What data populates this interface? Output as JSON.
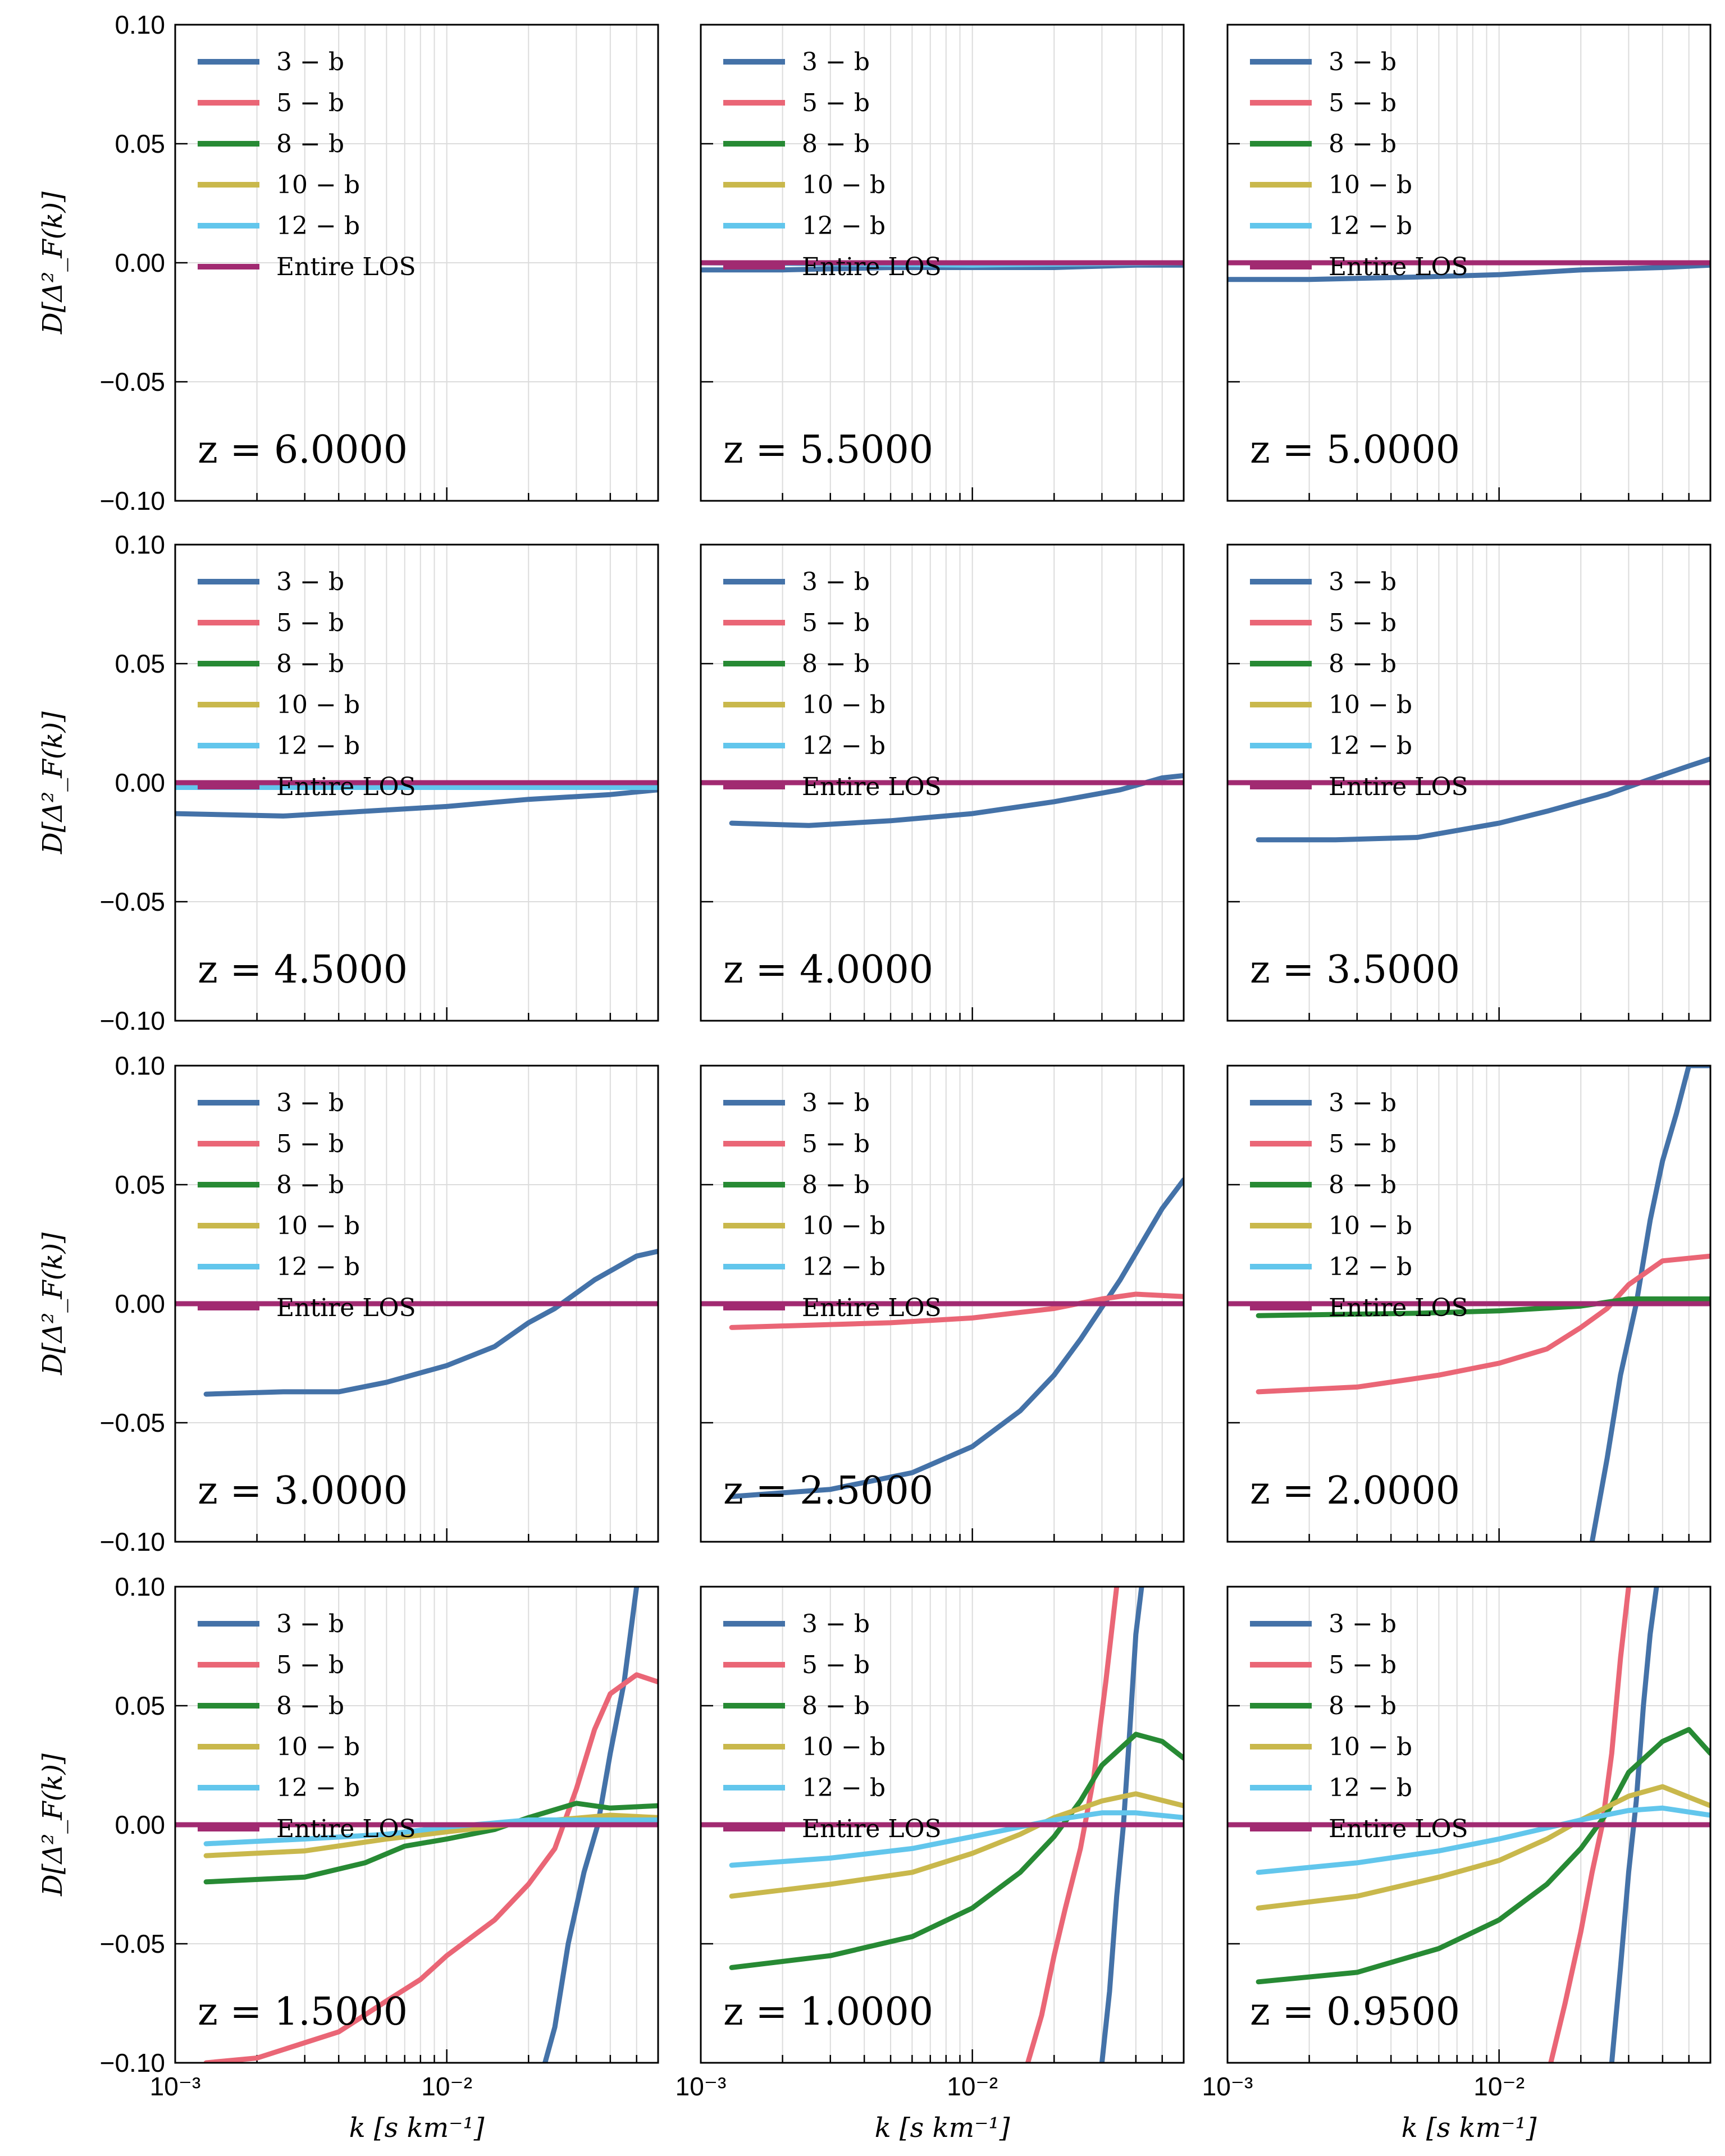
{
  "colors": {
    "3-b": "#4472a8",
    "5-b": "#ea6676",
    "8-b": "#278a34",
    "10-b": "#c9b84c",
    "12-b": "#62c6ec",
    "entire": "#a12a71"
  },
  "ylabel": "D[Δ²_F(k)]",
  "xlabel": "k [s km⁻¹]",
  "chart_data": {
    "type": "line",
    "xscale": "log",
    "xlim": [
      0.001,
      0.06
    ],
    "ylim": [
      -0.1,
      0.1
    ],
    "grid": true,
    "legend_position": "top-left",
    "ytick_labels": [
      "0.10",
      "0.05",
      "0.00",
      "−0.05",
      "−0.10"
    ],
    "xtick_labels": [
      "10⁻³",
      "10⁻²"
    ],
    "legend_labels": [
      "3 − b",
      "5 − b",
      "8 − b",
      "10 − b",
      "12 − b",
      "Entire LOS"
    ],
    "panels": [
      {
        "z_label": "z = 6.0000",
        "series": []
      },
      {
        "z_label": "z = 5.5000",
        "series": [
          {
            "name": "3 − b",
            "k": [
              0.001,
              0.002,
              0.005,
              0.01,
              0.02,
              0.04,
              0.06
            ],
            "y": [
              -0.003,
              -0.003,
              -0.002,
              -0.002,
              -0.002,
              -0.001,
              -0.001
            ]
          },
          {
            "name": "12 − b",
            "k": [
              0.001,
              0.01,
              0.06
            ],
            "y": [
              0.0,
              -0.001,
              0.0
            ]
          },
          {
            "name": "Entire LOS",
            "k": [
              0.001,
              0.06
            ],
            "y": [
              0.0,
              0.0
            ]
          }
        ]
      },
      {
        "z_label": "z = 5.0000",
        "series": [
          {
            "name": "3 − b",
            "k": [
              0.001,
              0.002,
              0.005,
              0.01,
              0.02,
              0.04,
              0.06
            ],
            "y": [
              -0.007,
              -0.007,
              -0.006,
              -0.005,
              -0.003,
              -0.002,
              -0.001
            ]
          },
          {
            "name": "Entire LOS",
            "k": [
              0.001,
              0.06
            ],
            "y": [
              0.0,
              0.0
            ]
          }
        ]
      },
      {
        "z_label": "z = 4.5000",
        "series": [
          {
            "name": "3 − b",
            "k": [
              0.001,
              0.0025,
              0.005,
              0.01,
              0.02,
              0.04,
              0.06
            ],
            "y": [
              -0.013,
              -0.014,
              -0.012,
              -0.01,
              -0.007,
              -0.005,
              -0.003
            ]
          },
          {
            "name": "12 − b",
            "k": [
              0.001,
              0.01,
              0.06
            ],
            "y": [
              -0.002,
              -0.002,
              -0.002
            ]
          },
          {
            "name": "Entire LOS",
            "k": [
              0.001,
              0.06
            ],
            "y": [
              0.0,
              0.0
            ]
          }
        ]
      },
      {
        "z_label": "z = 4.0000",
        "series": [
          {
            "name": "3 − b",
            "k": [
              0.0013,
              0.0025,
              0.005,
              0.01,
              0.02,
              0.035,
              0.05,
              0.06
            ],
            "y": [
              -0.017,
              -0.018,
              -0.016,
              -0.013,
              -0.008,
              -0.003,
              0.002,
              0.003
            ]
          },
          {
            "name": "Entire LOS",
            "k": [
              0.001,
              0.06
            ],
            "y": [
              0.0,
              0.0
            ]
          }
        ]
      },
      {
        "z_label": "z = 3.5000",
        "series": [
          {
            "name": "3 − b",
            "k": [
              0.0013,
              0.0025,
              0.005,
              0.01,
              0.015,
              0.025,
              0.035,
              0.05,
              0.06
            ],
            "y": [
              -0.024,
              -0.024,
              -0.023,
              -0.017,
              -0.012,
              -0.005,
              0.001,
              0.007,
              0.01
            ]
          },
          {
            "name": "Entire LOS",
            "k": [
              0.001,
              0.06
            ],
            "y": [
              0.0,
              0.0
            ]
          }
        ]
      },
      {
        "z_label": "z = 3.0000",
        "series": [
          {
            "name": "3 − b",
            "k": [
              0.0013,
              0.0025,
              0.004,
              0.006,
              0.01,
              0.015,
              0.02,
              0.025,
              0.035,
              0.05,
              0.06
            ],
            "y": [
              -0.038,
              -0.037,
              -0.037,
              -0.033,
              -0.026,
              -0.018,
              -0.008,
              -0.002,
              0.01,
              0.02,
              0.022
            ]
          },
          {
            "name": "Entire LOS",
            "k": [
              0.001,
              0.06
            ],
            "y": [
              0.0,
              0.0
            ]
          }
        ]
      },
      {
        "z_label": "z = 2.5000",
        "series": [
          {
            "name": "3 − b",
            "k": [
              0.0013,
              0.003,
              0.006,
              0.01,
              0.015,
              0.02,
              0.025,
              0.035,
              0.05,
              0.06
            ],
            "y": [
              -0.081,
              -0.078,
              -0.071,
              -0.06,
              -0.045,
              -0.03,
              -0.015,
              0.01,
              0.04,
              0.052
            ]
          },
          {
            "name": "5 − b",
            "k": [
              0.0013,
              0.005,
              0.01,
              0.02,
              0.03,
              0.04,
              0.06
            ],
            "y": [
              -0.01,
              -0.008,
              -0.006,
              -0.002,
              0.002,
              0.004,
              0.003
            ]
          },
          {
            "name": "Entire LOS",
            "k": [
              0.001,
              0.06
            ],
            "y": [
              0.0,
              0.0
            ]
          }
        ]
      },
      {
        "z_label": "z = 2.0000",
        "series": [
          {
            "name": "3 − b",
            "k": [
              0.022,
              0.025,
              0.028,
              0.032,
              0.036,
              0.04,
              0.045,
              0.05,
              0.06
            ],
            "y": [
              -0.1,
              -0.065,
              -0.03,
              0.0,
              0.035,
              0.06,
              0.08,
              0.1,
              0.1
            ]
          },
          {
            "name": "5 − b",
            "k": [
              0.0013,
              0.003,
              0.006,
              0.01,
              0.015,
              0.02,
              0.025,
              0.03,
              0.04,
              0.06
            ],
            "y": [
              -0.037,
              -0.035,
              -0.03,
              -0.025,
              -0.019,
              -0.01,
              -0.002,
              0.008,
              0.018,
              0.02
            ]
          },
          {
            "name": "8 − b",
            "k": [
              0.0013,
              0.005,
              0.01,
              0.02,
              0.03,
              0.06
            ],
            "y": [
              -0.005,
              -0.004,
              -0.003,
              -0.001,
              0.002,
              0.002
            ]
          },
          {
            "name": "Entire LOS",
            "k": [
              0.001,
              0.06
            ],
            "y": [
              0.0,
              0.0
            ]
          }
        ]
      },
      {
        "z_label": "z = 1.5000",
        "series": [
          {
            "name": "3 − b",
            "k": [
              0.023,
              0.025,
              0.028,
              0.032,
              0.036,
              0.04,
              0.045,
              0.05
            ],
            "y": [
              -0.1,
              -0.085,
              -0.05,
              -0.02,
              0.0,
              0.03,
              0.06,
              0.1
            ]
          },
          {
            "name": "5 − b",
            "k": [
              0.0013,
              0.002,
              0.004,
              0.006,
              0.008,
              0.01,
              0.015,
              0.02,
              0.025,
              0.03,
              0.035,
              0.04,
              0.05,
              0.06
            ],
            "y": [
              -0.1,
              -0.098,
              -0.087,
              -0.074,
              -0.065,
              -0.055,
              -0.04,
              -0.025,
              -0.01,
              0.015,
              0.04,
              0.055,
              0.063,
              0.06
            ]
          },
          {
            "name": "8 − b",
            "k": [
              0.0013,
              0.003,
              0.005,
              0.007,
              0.01,
              0.015,
              0.02,
              0.03,
              0.04,
              0.06
            ],
            "y": [
              -0.024,
              -0.022,
              -0.016,
              -0.009,
              -0.006,
              -0.002,
              0.003,
              0.009,
              0.007,
              0.008
            ]
          },
          {
            "name": "10 − b",
            "k": [
              0.0013,
              0.003,
              0.006,
              0.01,
              0.02,
              0.04,
              0.06
            ],
            "y": [
              -0.013,
              -0.011,
              -0.006,
              -0.003,
              0.001,
              0.004,
              0.003
            ]
          },
          {
            "name": "12 − b",
            "k": [
              0.0013,
              0.003,
              0.006,
              0.01,
              0.02,
              0.04,
              0.06
            ],
            "y": [
              -0.008,
              -0.006,
              -0.004,
              -0.001,
              0.002,
              0.002,
              0.002
            ]
          },
          {
            "name": "Entire LOS",
            "k": [
              0.001,
              0.06
            ],
            "y": [
              0.0,
              0.0
            ]
          }
        ]
      },
      {
        "z_label": "z = 1.0000",
        "series": [
          {
            "name": "3 − b",
            "k": [
              0.03,
              0.032,
              0.034,
              0.036,
              0.038,
              0.04,
              0.042
            ],
            "y": [
              -0.1,
              -0.07,
              -0.03,
              0.0,
              0.04,
              0.08,
              0.1
            ]
          },
          {
            "name": "5 − b",
            "k": [
              0.016,
              0.018,
              0.02,
              0.022,
              0.025,
              0.028,
              0.031,
              0.034
            ],
            "y": [
              -0.1,
              -0.08,
              -0.055,
              -0.035,
              -0.01,
              0.02,
              0.06,
              0.1
            ]
          },
          {
            "name": "8 − b",
            "k": [
              0.0013,
              0.003,
              0.006,
              0.01,
              0.015,
              0.02,
              0.025,
              0.03,
              0.04,
              0.05,
              0.06
            ],
            "y": [
              -0.06,
              -0.055,
              -0.047,
              -0.035,
              -0.02,
              -0.005,
              0.01,
              0.025,
              0.038,
              0.035,
              0.028
            ]
          },
          {
            "name": "10 − b",
            "k": [
              0.0013,
              0.003,
              0.006,
              0.01,
              0.015,
              0.02,
              0.03,
              0.04,
              0.06
            ],
            "y": [
              -0.03,
              -0.025,
              -0.02,
              -0.012,
              -0.004,
              0.003,
              0.01,
              0.013,
              0.008
            ]
          },
          {
            "name": "12 − b",
            "k": [
              0.0013,
              0.003,
              0.006,
              0.01,
              0.02,
              0.03,
              0.04,
              0.06
            ],
            "y": [
              -0.017,
              -0.014,
              -0.01,
              -0.005,
              0.002,
              0.005,
              0.005,
              0.003
            ]
          },
          {
            "name": "Entire LOS",
            "k": [
              0.001,
              0.06
            ],
            "y": [
              0.0,
              0.0
            ]
          }
        ]
      },
      {
        "z_label": "z = 0.9500",
        "series": [
          {
            "name": "3 − b",
            "k": [
              0.026,
              0.028,
              0.03,
              0.032,
              0.034,
              0.036,
              0.038
            ],
            "y": [
              -0.1,
              -0.06,
              -0.02,
              0.01,
              0.05,
              0.08,
              0.1
            ]
          },
          {
            "name": "5 − b",
            "k": [
              0.0155,
              0.0175,
              0.02,
              0.022,
              0.024,
              0.026,
              0.028,
              0.03
            ],
            "y": [
              -0.1,
              -0.075,
              -0.045,
              -0.02,
              0.0,
              0.03,
              0.07,
              0.1
            ]
          },
          {
            "name": "8 − b",
            "k": [
              0.0013,
              0.003,
              0.006,
              0.01,
              0.015,
              0.02,
              0.025,
              0.03,
              0.04,
              0.05,
              0.06
            ],
            "y": [
              -0.066,
              -0.062,
              -0.052,
              -0.04,
              -0.025,
              -0.01,
              0.005,
              0.022,
              0.035,
              0.04,
              0.03
            ]
          },
          {
            "name": "10 − b",
            "k": [
              0.0013,
              0.003,
              0.006,
              0.01,
              0.015,
              0.02,
              0.03,
              0.04,
              0.06
            ],
            "y": [
              -0.035,
              -0.03,
              -0.022,
              -0.015,
              -0.006,
              0.002,
              0.012,
              0.016,
              0.008
            ]
          },
          {
            "name": "12 − b",
            "k": [
              0.0013,
              0.003,
              0.006,
              0.01,
              0.02,
              0.03,
              0.04,
              0.06
            ],
            "y": [
              -0.02,
              -0.016,
              -0.011,
              -0.006,
              0.002,
              0.006,
              0.007,
              0.004
            ]
          },
          {
            "name": "Entire LOS",
            "k": [
              0.001,
              0.06
            ],
            "y": [
              0.0,
              0.0
            ]
          }
        ]
      }
    ]
  }
}
